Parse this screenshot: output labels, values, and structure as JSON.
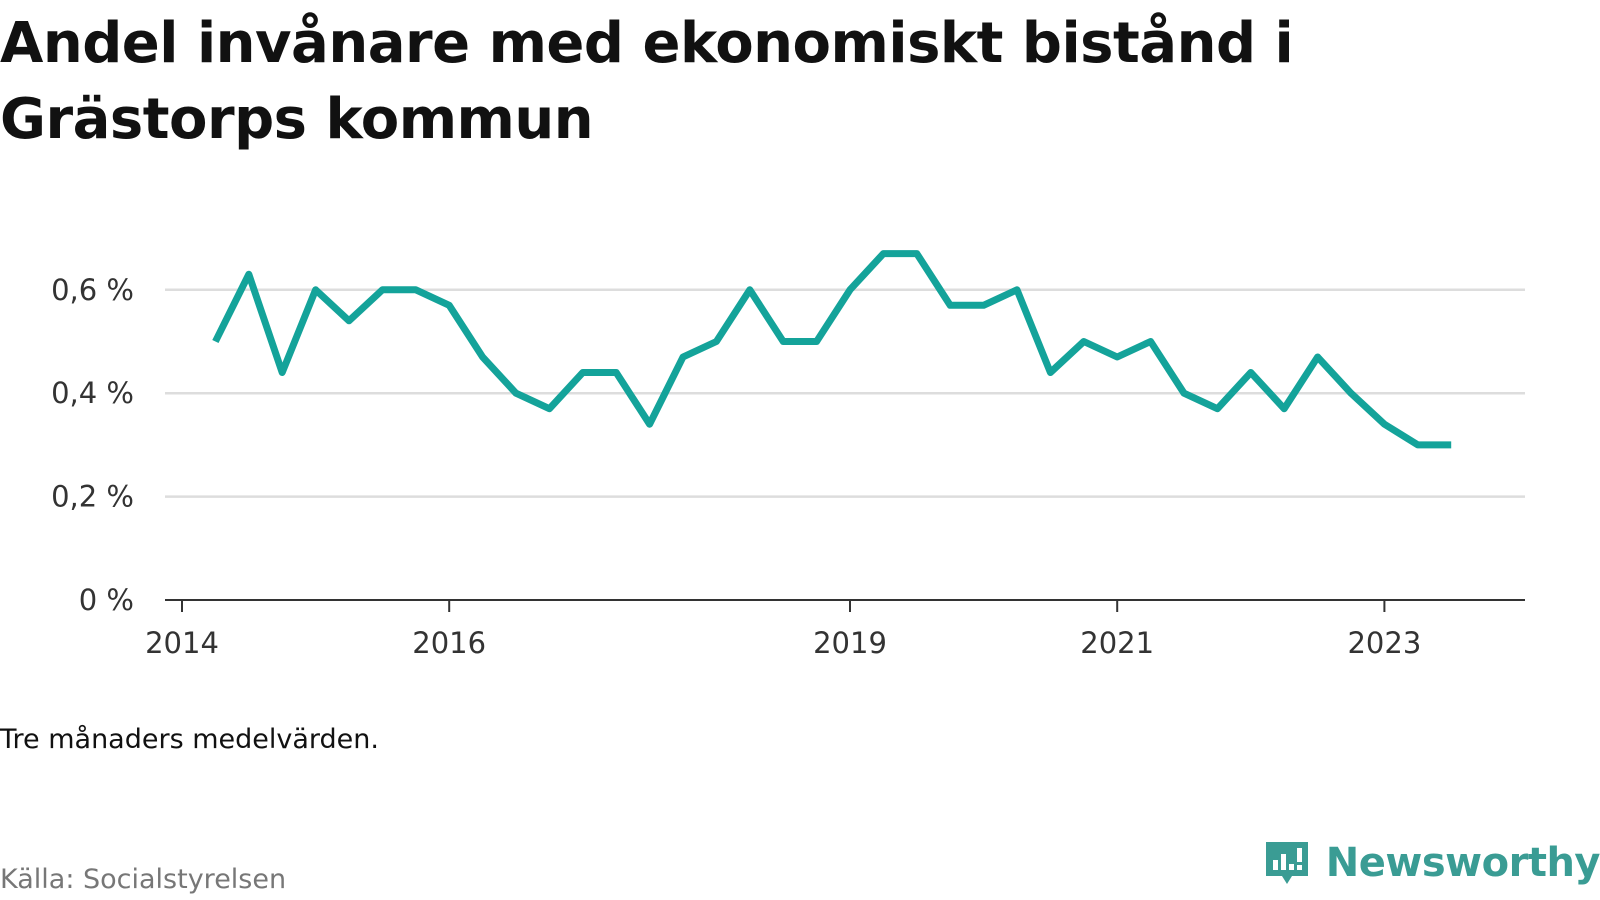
{
  "title": "Andel invånare med ekonomiskt bistånd i Grästorps kommun",
  "note": "Tre månaders medelvärden.",
  "source": "Källa: Socialstyrelsen",
  "brand": {
    "name": "Newsworthy",
    "icon": "newsworthy-logo-icon"
  },
  "colors": {
    "line": "#14a39a",
    "grid": "#dddddd",
    "axis": "#333333",
    "brand": "#3a9c94"
  },
  "chart_data": {
    "type": "line",
    "title": "Andel invånare med ekonomiskt bistånd i Grästorps kommun",
    "xlabel": "",
    "ylabel": "",
    "x_ticks": [
      "2014",
      "2016",
      "2019",
      "2021",
      "2023"
    ],
    "y_ticks": [
      "0 %",
      "0,2 %",
      "0,4 %",
      "0,6 %"
    ],
    "ylim": [
      0,
      0.7
    ],
    "grid": true,
    "legend": "none",
    "series": [
      {
        "x": [
          "2014-04",
          "2014-07",
          "2014-10",
          "2015-01",
          "2015-04",
          "2015-07",
          "2015-10",
          "2016-01",
          "2016-04",
          "2016-07",
          "2016-10",
          "2017-01",
          "2017-04",
          "2017-07",
          "2017-10",
          "2018-01",
          "2018-04",
          "2018-07",
          "2018-10",
          "2019-01",
          "2019-04",
          "2019-07",
          "2019-10",
          "2020-01",
          "2020-04",
          "2020-07",
          "2020-10",
          "2021-01",
          "2021-04",
          "2021-07",
          "2021-10",
          "2022-01",
          "2022-04",
          "2022-07",
          "2022-10",
          "2023-01",
          "2023-04",
          "2023-07"
        ],
        "values": [
          0.5,
          0.63,
          0.44,
          0.6,
          0.54,
          0.6,
          0.6,
          0.57,
          0.47,
          0.4,
          0.37,
          0.44,
          0.44,
          0.34,
          0.47,
          0.5,
          0.6,
          0.5,
          0.5,
          0.6,
          0.67,
          0.67,
          0.57,
          0.57,
          0.6,
          0.44,
          0.5,
          0.47,
          0.5,
          0.4,
          0.37,
          0.44,
          0.37,
          0.47,
          0.4,
          0.34,
          0.3,
          0.3
        ]
      }
    ]
  }
}
